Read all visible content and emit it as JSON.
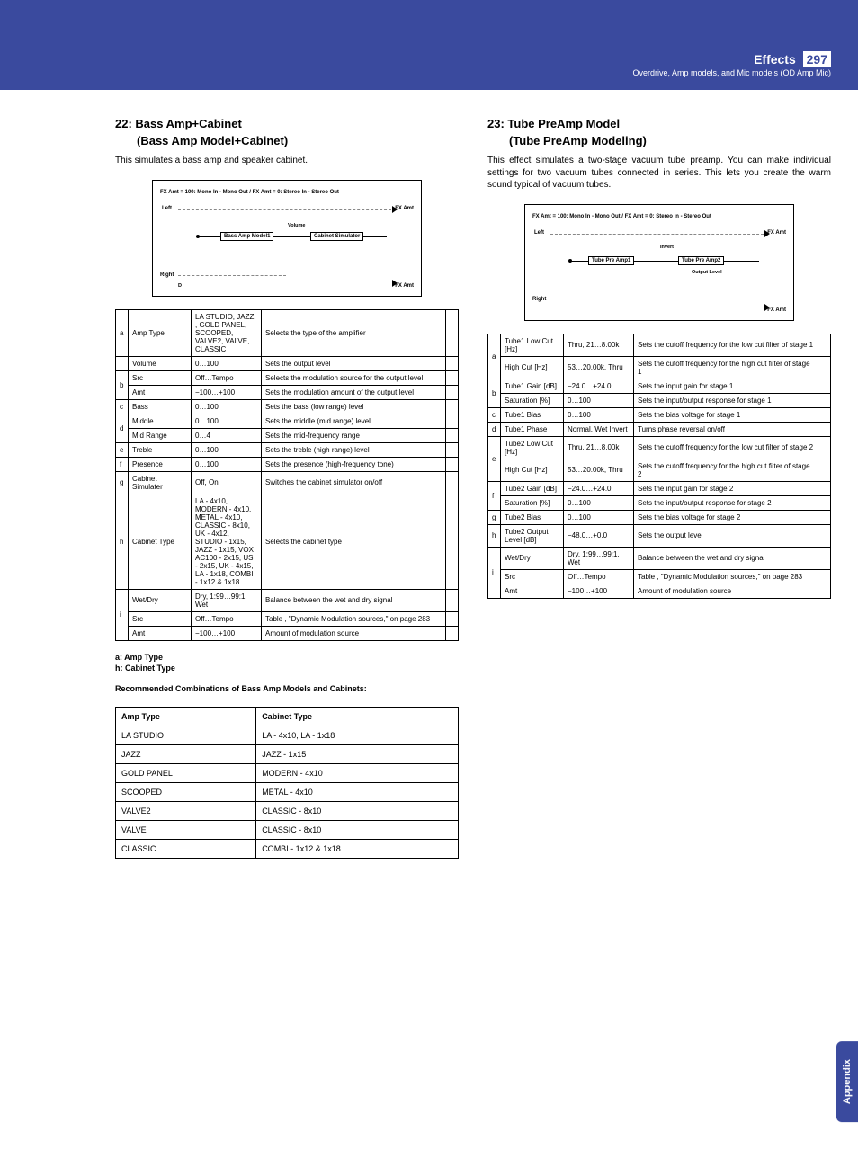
{
  "header": {
    "title": "Effects",
    "pagenum": "297",
    "subtitle": "Overdrive, Amp models, and Mic models (OD Amp Mic)"
  },
  "sidetab": "Appendix",
  "left": {
    "sec_no": "22:",
    "sec_name": "Bass Amp+Cabinet",
    "sec_sub": "(Bass Amp Model+Cabinet)",
    "intro": "This simulates a bass amp and speaker cabinet.",
    "diagram": {
      "top": "FX Amt = 100: Mono In - Mono Out / FX Amt = 0: Stereo In - Stereo Out",
      "left": "Left",
      "right": "Right",
      "fx": "FX Amt",
      "box1": "Bass Amp Model1",
      "box2": "Cabinet Simulator",
      "volume": "Volume",
      "dmod": "D"
    },
    "params": [
      {
        "idx": "a",
        "rows": [
          {
            "n": "Amp Type",
            "r": "LA STUDIO, JAZZ , GOLD PANEL, SCOOPED, VALVE2, VALVE, CLASSIC",
            "d": "Selects the type of the amplifier"
          }
        ]
      },
      {
        "idx": "",
        "rows": [
          {
            "n": "Volume",
            "r": "0…100",
            "d": "Sets the output level"
          }
        ]
      },
      {
        "idx": "b",
        "rows": [
          {
            "n": "Src",
            "r": "Off…Tempo",
            "d": "Selects the modulation source for the output level"
          },
          {
            "n": "Amt",
            "r": "−100…+100",
            "d": "Sets the modulation amount of the output level"
          }
        ]
      },
      {
        "idx": "c",
        "rows": [
          {
            "n": "Bass",
            "r": "0…100",
            "d": "Sets the bass (low range) level"
          }
        ]
      },
      {
        "idx": "d",
        "rows": [
          {
            "n": "Middle",
            "r": "0…100",
            "d": "Sets the middle (mid range) level"
          },
          {
            "n": "Mid Range",
            "r": "0…4",
            "d": "Sets the mid-frequency range"
          }
        ]
      },
      {
        "idx": "e",
        "rows": [
          {
            "n": "Treble",
            "r": "0…100",
            "d": "Sets the treble (high range) level"
          }
        ]
      },
      {
        "idx": "f",
        "rows": [
          {
            "n": "Presence",
            "r": "0…100",
            "d": "Sets the presence (high-frequency tone)"
          }
        ]
      },
      {
        "idx": "g",
        "rows": [
          {
            "n": "Cabinet Simulater",
            "r": "Off, On",
            "d": "Switches the cabinet simulator on/off"
          }
        ]
      },
      {
        "idx": "h",
        "rows": [
          {
            "n": "Cabinet Type",
            "r": "LA - 4x10, MODERN - 4x10, METAL - 4x10, CLASSIC - 8x10, UK - 4x12, STUDIO - 1x15, JAZZ - 1x15, VOX AC100 - 2x15, US - 2x15, UK - 4x15, LA - 1x18, COMBI - 1x12 & 1x18",
            "d": "Selects the cabinet type"
          }
        ]
      },
      {
        "idx": "i",
        "rows": [
          {
            "n": "Wet/Dry",
            "r": "Dry, 1:99…99:1, Wet",
            "d": "Balance between the wet and dry signal"
          },
          {
            "n": "Src",
            "r": "Off…Tempo",
            "d": "Table , \"Dynamic Modulation sources,\" on page 283"
          },
          {
            "n": "Amt",
            "r": "−100…+100",
            "d": "Amount of modulation source"
          }
        ]
      }
    ],
    "note1": "a: Amp Type",
    "note2": "h: Cabinet Type",
    "note3": "Recommended Combinations of Bass Amp Models and Cabinets:",
    "combo_h1": "Amp Type",
    "combo_h2": "Cabinet Type",
    "combos": [
      {
        "a": "LA STUDIO",
        "c": "LA - 4x10, LA - 1x18"
      },
      {
        "a": "JAZZ",
        "c": "JAZZ - 1x15"
      },
      {
        "a": "GOLD PANEL",
        "c": "MODERN - 4x10"
      },
      {
        "a": "SCOOPED",
        "c": "METAL - 4x10"
      },
      {
        "a": "VALVE2",
        "c": "CLASSIC - 8x10"
      },
      {
        "a": "VALVE",
        "c": "CLASSIC - 8x10"
      },
      {
        "a": "CLASSIC",
        "c": "COMBI - 1x12 & 1x18"
      }
    ]
  },
  "right": {
    "sec_no": "23:",
    "sec_name": "Tube PreAmp Model",
    "sec_sub": "(Tube PreAmp Modeling)",
    "intro": "This effect simulates a two-stage vacuum tube preamp. You can make individual settings for two vacuum tubes connected in series. This lets you create the warm sound typical of vacuum tubes.",
    "diagram": {
      "top": "FX Amt = 100: Mono In - Mono Out / FX Amt = 0: Stereo In - Stereo Out",
      "left": "Left",
      "right": "Right",
      "fx": "FX Amt",
      "box1": "Tube Pre Amp1",
      "box2": "Tube Pre Amp2",
      "invert": "Invert",
      "output": "Output Level"
    },
    "params": [
      {
        "idx": "a",
        "rows": [
          {
            "n": "Tube1 Low Cut [Hz]",
            "r": "Thru, 21…8.00k",
            "d": "Sets the cutoff frequency for the low cut filter of stage 1"
          },
          {
            "n": "High Cut [Hz]",
            "r": "53…20.00k, Thru",
            "d": "Sets the cutoff frequency for the high cut filter of stage 1"
          }
        ]
      },
      {
        "idx": "b",
        "rows": [
          {
            "n": "Tube1 Gain [dB]",
            "r": "−24.0…+24.0",
            "d": "Sets the input gain for stage 1"
          },
          {
            "n": "Saturation [%]",
            "r": "0…100",
            "d": "Sets the input/output response for stage 1"
          }
        ]
      },
      {
        "idx": "c",
        "rows": [
          {
            "n": "Tube1 Bias",
            "r": "0…100",
            "d": "Sets the bias voltage for stage 1"
          }
        ]
      },
      {
        "idx": "d",
        "rows": [
          {
            "n": "Tube1 Phase",
            "r": "Normal, Wet Invert",
            "d": "Turns phase reversal on/off"
          }
        ]
      },
      {
        "idx": "e",
        "rows": [
          {
            "n": "Tube2 Low Cut [Hz]",
            "r": "Thru, 21…8.00k",
            "d": "Sets the cutoff frequency for the low cut filter of stage 2"
          },
          {
            "n": "High Cut [Hz]",
            "r": "53…20.00k, Thru",
            "d": "Sets the cutoff frequency for the high cut filter of stage 2"
          }
        ]
      },
      {
        "idx": "f",
        "rows": [
          {
            "n": "Tube2 Gain [dB]",
            "r": "−24.0…+24.0",
            "d": "Sets the input gain for stage 2"
          },
          {
            "n": "Saturation [%]",
            "r": "0…100",
            "d": "Sets the input/output response for stage 2"
          }
        ]
      },
      {
        "idx": "g",
        "rows": [
          {
            "n": "Tube2 Bias",
            "r": "0…100",
            "d": "Sets the bias voltage for stage 2"
          }
        ]
      },
      {
        "idx": "h",
        "rows": [
          {
            "n": "Tube2 Output Level [dB]",
            "r": "−48.0…+0.0",
            "d": "Sets the output level"
          }
        ]
      },
      {
        "idx": "i",
        "rows": [
          {
            "n": "Wet/Dry",
            "r": "Dry, 1:99…99:1, Wet",
            "d": "Balance between the wet and dry signal"
          },
          {
            "n": "Src",
            "r": "Off…Tempo",
            "d": "Table , \"Dynamic Modulation sources,\" on page 283"
          },
          {
            "n": "Amt",
            "r": "−100…+100",
            "d": "Amount of modulation source"
          }
        ]
      }
    ]
  }
}
